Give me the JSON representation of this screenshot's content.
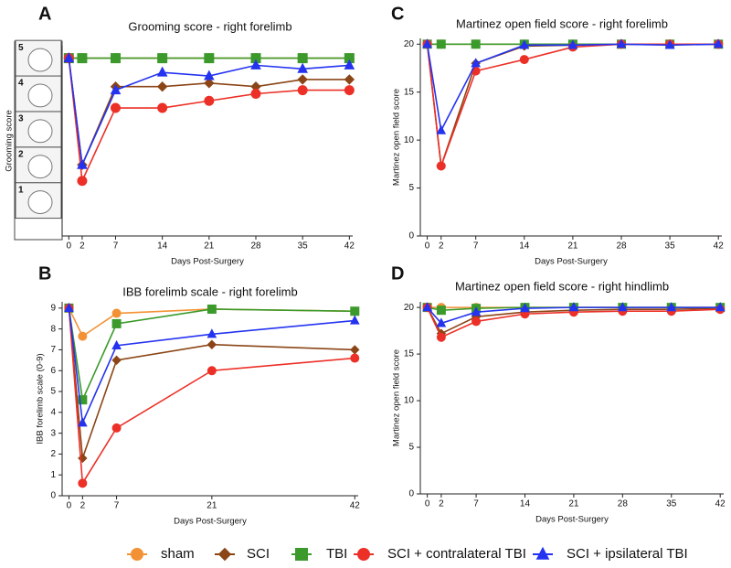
{
  "chart_data": [
    {
      "type": "line",
      "panel": "A",
      "title": "Grooming score - right forelimb",
      "xlabel": "Days Post-Surgery",
      "ylabel": "Grooming score",
      "x": [
        0,
        2,
        7,
        14,
        21,
        28,
        35,
        42
      ],
      "xlim": [
        -1,
        42.5
      ],
      "xticks": [
        0,
        2,
        7,
        14,
        21,
        28,
        35,
        42
      ],
      "ylim": [
        0,
        5.35
      ],
      "yticks": [
        1,
        2,
        3,
        4,
        5
      ],
      "grid": false,
      "series": [
        {
          "name": "sham",
          "color": "#f39234",
          "marker": "circle",
          "values": [
            5,
            5,
            5,
            5,
            5,
            5,
            5,
            5
          ]
        },
        {
          "name": "SCI",
          "color": "#8b4516",
          "marker": "diamond",
          "values": [
            5,
            2.0,
            4.2,
            4.2,
            4.3,
            4.2,
            4.4,
            4.4
          ]
        },
        {
          "name": "TBI",
          "color": "#3b9a2b",
          "marker": "square",
          "values": [
            5,
            5,
            5,
            5,
            5,
            5,
            5,
            5
          ]
        },
        {
          "name": "SCI + contralateral TBI",
          "color": "#ec3027",
          "marker": "circle",
          "values": [
            5,
            1.55,
            3.6,
            3.6,
            3.8,
            4.0,
            4.1,
            4.1
          ]
        },
        {
          "name": "SCI + ipsilateral TBI",
          "color": "#2433f0",
          "marker": "triangle",
          "values": [
            5,
            2.0,
            4.1,
            4.6,
            4.5,
            4.8,
            4.7,
            4.8
          ]
        }
      ]
    },
    {
      "type": "line",
      "panel": "B",
      "title": "IBB forelimb scale - right forelimb",
      "xlabel": "Days Post-Surgery",
      "ylabel": "IBB forelimb scale (0-9)",
      "x": [
        0,
        2,
        7,
        21,
        42
      ],
      "xlim": [
        -1,
        42.5
      ],
      "xticks": [
        0,
        2,
        7,
        21,
        42
      ],
      "ylim": [
        0,
        9.3
      ],
      "yticks": [
        0,
        1,
        2,
        3,
        4,
        5,
        6,
        7,
        8,
        9
      ],
      "grid": false,
      "series": [
        {
          "name": "sham",
          "color": "#f39234",
          "marker": "circle",
          "values": [
            9,
            7.65,
            8.75,
            8.95,
            8.85
          ]
        },
        {
          "name": "SCI",
          "color": "#8b4516",
          "marker": "diamond",
          "values": [
            9,
            1.8,
            6.5,
            7.25,
            7.0
          ]
        },
        {
          "name": "TBI",
          "color": "#3b9a2b",
          "marker": "square",
          "values": [
            9,
            4.6,
            8.25,
            8.95,
            8.85
          ]
        },
        {
          "name": "SCI + contralateral TBI",
          "color": "#ec3027",
          "marker": "circle",
          "values": [
            9,
            0.6,
            3.25,
            6.0,
            6.6
          ]
        },
        {
          "name": "SCI + ipsilateral TBI",
          "color": "#2433f0",
          "marker": "triangle",
          "values": [
            9,
            3.5,
            7.2,
            7.75,
            8.4
          ]
        }
      ]
    },
    {
      "type": "line",
      "panel": "C",
      "title": "Martinez open field score - right forelimb",
      "xlabel": "Days Post-Surgery",
      "ylabel": "Martinez open field score",
      "x": [
        0,
        2,
        7,
        14,
        21,
        28,
        35,
        42
      ],
      "xlim": [
        -1,
        42.5
      ],
      "xticks": [
        0,
        2,
        7,
        14,
        21,
        28,
        35,
        42
      ],
      "ylim": [
        0,
        20.6
      ],
      "yticks": [
        0,
        5,
        10,
        15,
        20
      ],
      "grid": false,
      "series": [
        {
          "name": "sham",
          "color": "#f39234",
          "marker": "circle",
          "values": [
            20,
            20,
            20,
            20,
            20,
            20,
            20,
            20
          ]
        },
        {
          "name": "SCI",
          "color": "#8b4516",
          "marker": "diamond",
          "values": [
            20,
            7.3,
            18,
            19.8,
            19.9,
            20,
            20,
            20
          ]
        },
        {
          "name": "TBI",
          "color": "#3b9a2b",
          "marker": "square",
          "values": [
            20,
            20,
            20,
            20,
            20,
            20,
            20,
            20
          ]
        },
        {
          "name": "SCI + contralateral TBI",
          "color": "#ec3027",
          "marker": "circle",
          "values": [
            20,
            7.3,
            17.2,
            18.4,
            19.7,
            20,
            20,
            20
          ]
        },
        {
          "name": "SCI + ipsilateral TBI",
          "color": "#2433f0",
          "marker": "triangle",
          "values": [
            20,
            11,
            18,
            19.9,
            19.9,
            20,
            19.9,
            20
          ]
        }
      ]
    },
    {
      "type": "line",
      "panel": "D",
      "title": "Martinez open field score - right hindlimb",
      "xlabel": "Days Post-Surgery",
      "ylabel": "Martinez open field score",
      "x": [
        0,
        2,
        7,
        14,
        21,
        28,
        35,
        42
      ],
      "xlim": [
        -1,
        42.5
      ],
      "xticks": [
        0,
        2,
        7,
        14,
        21,
        28,
        35,
        42
      ],
      "ylim": [
        0,
        20.6
      ],
      "yticks": [
        0,
        5,
        10,
        15,
        20
      ],
      "grid": false,
      "series": [
        {
          "name": "sham",
          "color": "#f39234",
          "marker": "circle",
          "values": [
            20,
            20,
            20,
            20,
            20,
            20,
            20,
            20
          ]
        },
        {
          "name": "SCI",
          "color": "#8b4516",
          "marker": "diamond",
          "values": [
            20,
            17.2,
            19,
            19.5,
            19.7,
            19.8,
            19.8,
            19.9
          ]
        },
        {
          "name": "TBI",
          "color": "#3b9a2b",
          "marker": "square",
          "values": [
            20,
            19.7,
            19.9,
            20,
            20,
            20,
            20,
            20
          ]
        },
        {
          "name": "SCI + contralateral TBI",
          "color": "#ec3027",
          "marker": "circle",
          "values": [
            20,
            16.8,
            18.5,
            19.3,
            19.5,
            19.6,
            19.6,
            19.8
          ]
        },
        {
          "name": "SCI + ipsilateral TBI",
          "color": "#2433f0",
          "marker": "triangle",
          "values": [
            20,
            18.3,
            19.5,
            19.9,
            20,
            20,
            20,
            20
          ]
        }
      ]
    }
  ]
}
